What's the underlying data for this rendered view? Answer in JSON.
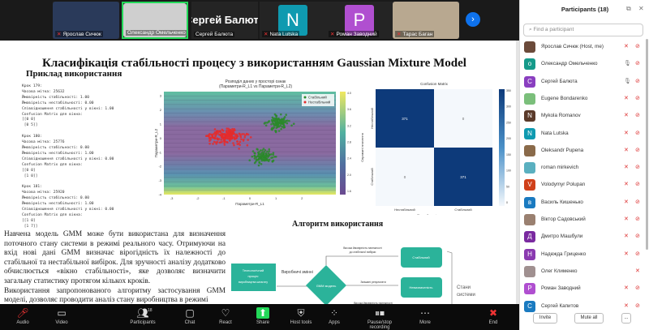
{
  "video_strip": {
    "tiles": [
      {
        "name": "Ярослав Сичюк",
        "muted": true,
        "type": "photo",
        "color": "#2a3a5a"
      },
      {
        "name": "Олександр Омельченко",
        "muted": false,
        "type": "photo",
        "color": "#cfcfcf",
        "speaking": true
      },
      {
        "name": "Сергей Балюта",
        "muted": false,
        "type": "name",
        "display": "Сергей Балюта"
      },
      {
        "name": "Nata Lutska",
        "muted": true,
        "type": "letter",
        "letter": "N",
        "color": "#0f9ab0"
      },
      {
        "name": "Роман Заводний",
        "muted": true,
        "type": "letter",
        "letter": "P",
        "color": "#b04fd0"
      },
      {
        "name": "Тарас Баган",
        "muted": true,
        "type": "photo",
        "color": "#b8a890"
      }
    ],
    "next_icon": "chevron-right-icon"
  },
  "slide": {
    "title": "Класифікація стабільності процесу з використанням Gaussian Mixture Model",
    "subtitle": "Приклад використання",
    "code": "Крок 179:\nЧасова мітка: 25632\nЙмовірність стабільності: 1.00\nЙмовірність нестабільності: 0.00\nСпіввідношення стабільності у вікні: 1.00\nConfusion Matrix для вікна:\n[[0 0]\n [0 5]]\n\nКрок 180:\nЧасова мітка: 25776\nЙмовірність стабільності: 0.00\nЙмовірність нестабільності: 1.00\nСпіввідношення стабільності у вікні: 0.00\nConfusion Matrix для вікна:\n[[0 0]\n [1 0]]\n\nКрок 181:\nЧасова мітка: 25920\nЙмовірність стабільності: 0.00\nЙмовірність нестабільності: 1.00\nСпіввідношення стабільності у вікні: 0.00\nConfusion Matrix для вікна:\n[[1 0]\n [1 7]]",
    "paragraphs": [
      "Навчена модель GMM може бути використана для визначення поточного стану системи в режимі реального часу. Отримуючи на вхід нові дані GMM визначає вірогідність їх належності до стабільної та нестабільної вибірок. Для зручності аналізу додатково обчислюється «вікно стабільності», яке дозволяє визначити загальну статистику протягом кількох кроків.",
      "Використання запропонованого алгоритму застосування GMM моделі, дозволяє проводити аналіз стану виробництва в режимі"
    ],
    "scatter": {
      "title1": "Розподіл даних у просторі ознак",
      "title2": "(Параметри-R_L1 vs Параметри-R_L2)",
      "xlabel": "Параметри-R_L1",
      "ylabel": "Параметри-R_L2",
      "xticks": [
        "-3",
        "-2",
        "-1",
        "0",
        "1",
        "2"
      ],
      "yticks": [
        "3",
        "2",
        "1",
        "0",
        "-1",
        "-2",
        "-3",
        "-4"
      ],
      "legend": [
        "Стабільний",
        "Нестабільний"
      ],
      "colors": {
        "stable": "#2a8a2a",
        "unstable": "#e52b2b"
      },
      "colorbar_ticks": [
        "4.0",
        "3.6",
        "3.2",
        "2.8",
        "2.4",
        "2.0",
        "1.6"
      ]
    },
    "confusion": {
      "title": "Confusion Matrix",
      "xlabel": "Передбачені значення",
      "ylabel": "Справжні значення",
      "labels": [
        "Нестабільний",
        "Стабільний"
      ],
      "cells": [
        [
          "371",
          "0"
        ],
        [
          "0",
          "371"
        ]
      ],
      "colorbar_ticks": [
        "350",
        "300",
        "250",
        "200",
        "150",
        "100",
        "50",
        "0"
      ]
    },
    "algorithm": {
      "title": "Алгоритм використання",
      "process": "Технологічний процес виробництва шпагату",
      "input_label": "Виробничі змінні",
      "model": "GMM модель",
      "top_label": "Висока ймовірність належності до стабільної вибірки",
      "mid_label": "Змішані результати",
      "bottom_label": "Висока ймовірність належності",
      "states": [
        "Стабільний",
        "Невизначеність"
      ],
      "states_label": "Стани системи",
      "accent": "#2bb39a"
    }
  },
  "toolbar": {
    "items": [
      {
        "label": "Audio",
        "icon": "mic-off-icon"
      },
      {
        "label": "Video",
        "icon": "video-icon"
      },
      {
        "label": "Participants",
        "icon": "participants-icon",
        "count": "18"
      },
      {
        "label": "Chat",
        "icon": "chat-icon"
      },
      {
        "label": "React",
        "icon": "heart-icon"
      },
      {
        "label": "Share",
        "icon": "share-icon"
      },
      {
        "label": "Host tools",
        "icon": "shield-icon"
      },
      {
        "label": "Apps",
        "icon": "apps-icon"
      },
      {
        "label": "Pause/stop recording",
        "icon": "pause-stop-icon"
      },
      {
        "label": "More",
        "icon": "more-icon"
      },
      {
        "label": "End",
        "icon": "end-icon"
      }
    ]
  },
  "participants": {
    "title": "Participants (18)",
    "search_placeholder": "Find a participant",
    "list": [
      {
        "name": "Ярослав Сичюк (Host, me)",
        "avatar": "",
        "color": "#6b4a3a"
      },
      {
        "name": "Олександр Омельченко",
        "avatar": "о",
        "color": "#159a8a"
      },
      {
        "name": "Сергей Балюта",
        "avatar": "C",
        "color": "#8a3fc0"
      },
      {
        "name": "Eugene Bondarenko",
        "avatar": "",
        "color": "#7bbf7b"
      },
      {
        "name": "Mykola Romanov",
        "avatar": "N",
        "color": "#5a3a2a"
      },
      {
        "name": "Nata Lutska",
        "avatar": "N",
        "color": "#0f9ab0"
      },
      {
        "name": "Oleksandr Pupena",
        "avatar": "",
        "color": "#8a6a4a"
      },
      {
        "name": "roman mirkevich",
        "avatar": "",
        "color": "#5ab0c0"
      },
      {
        "name": "Volodymyr Polupan",
        "avatar": "V",
        "color": "#d0401a"
      },
      {
        "name": "Василь Кишенько",
        "avatar": "в",
        "color": "#1a7ac0"
      },
      {
        "name": "Віктор Садовський",
        "avatar": "",
        "color": "#9a8070"
      },
      {
        "name": "Дмитро Машбули",
        "avatar": "Д",
        "color": "#7a2aa0"
      },
      {
        "name": "Надежда Гриценко",
        "avatar": "Н",
        "color": "#8a3ab0"
      },
      {
        "name": "Олег Клименко",
        "avatar": "",
        "color": "#a09090"
      },
      {
        "name": "Роман Заводний",
        "avatar": "P",
        "color": "#b04fd0"
      },
      {
        "name": "Сергей Капитов",
        "avatar": "C",
        "color": "#1a7ac0"
      }
    ],
    "invite": "Invite",
    "mute_all": "Mute all",
    "more": "..."
  }
}
